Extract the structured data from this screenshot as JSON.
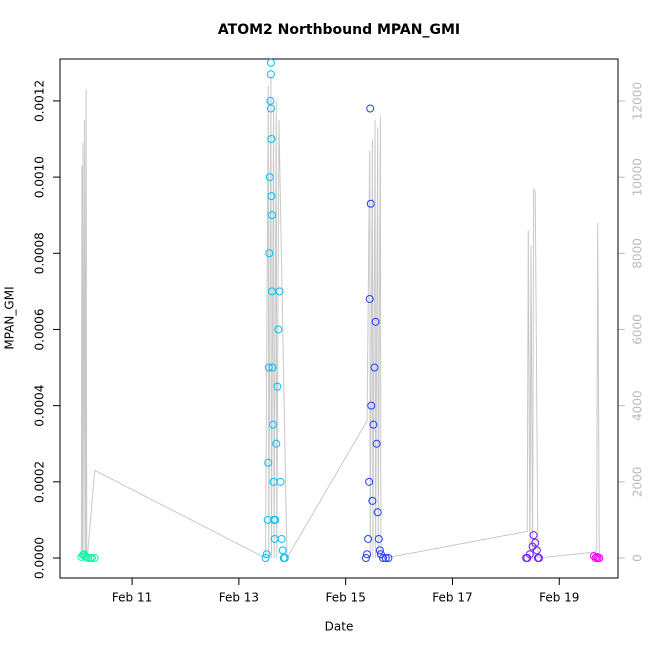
{
  "chart_data": {
    "type": "scatter",
    "title": "ATOM2 Northbound MPAN_GMI",
    "x_label": "Date",
    "y_label": "MPAN_GMI",
    "xlim": [
      9.65,
      20.1
    ],
    "xticks": [
      {
        "value": 11,
        "label": "Feb 11"
      },
      {
        "value": 13,
        "label": "Feb 13"
      },
      {
        "value": 15,
        "label": "Feb 15"
      },
      {
        "value": 17,
        "label": "Feb 17"
      },
      {
        "value": 19,
        "label": "Feb 19"
      }
    ],
    "ylim": [
      -5.25e-05,
      0.00131
    ],
    "yticks": [
      {
        "value": 0,
        "label": "0.0000"
      },
      {
        "value": 0.0002,
        "label": "0.0002"
      },
      {
        "value": 0.0004,
        "label": "0.0004"
      },
      {
        "value": 0.0006,
        "label": "0.0006"
      },
      {
        "value": 0.0008,
        "label": "0.0008"
      },
      {
        "value": 0.001,
        "label": "0.0010"
      },
      {
        "value": 0.0012,
        "label": "0.0012"
      }
    ],
    "y2lim": [
      -525,
      13103
    ],
    "y2ticks": [
      0,
      2000,
      4000,
      6000,
      8000,
      10000,
      12000
    ],
    "series": [
      {
        "type": "line",
        "axis": "y2",
        "color": "#c8c8c8",
        "x": [
          10.05,
          10.06,
          10.07,
          10.08,
          10.1,
          10.11,
          10.13,
          10.14,
          10.15,
          10.16,
          10.3,
          13.5,
          13.55,
          13.56,
          13.6,
          13.61,
          13.65,
          13.66,
          13.7,
          13.71,
          13.75,
          13.9,
          15.4,
          15.45,
          15.46,
          15.5,
          15.51,
          15.55,
          15.56,
          15.6,
          15.61,
          15.65,
          15.66,
          15.75,
          18.4,
          18.42,
          18.45,
          18.47,
          18.5,
          18.52,
          18.55,
          18.6,
          19.65,
          19.7,
          19.72,
          19.75
        ],
        "values": [
          0,
          10300,
          0,
          10900,
          0,
          11500,
          0,
          12300,
          0,
          0,
          2300,
          0,
          12400,
          0,
          12600,
          0,
          11800,
          0,
          12000,
          0,
          11500,
          0,
          3600,
          10700,
          0,
          11000,
          0,
          11500,
          0,
          11300,
          0,
          11600,
          0,
          0,
          700,
          8600,
          0,
          8200,
          0,
          9700,
          9600,
          0,
          150,
          200,
          8800,
          0
        ]
      },
      {
        "color": "#00ffaa",
        "x": [
          10.05,
          10.08,
          10.1,
          10.12,
          10.15,
          10.18,
          10.22,
          10.25,
          10.3
        ],
        "values": [
          3e-06,
          8e-06,
          1e-05,
          5e-06,
          2e-06,
          0,
          0,
          0,
          0
        ]
      },
      {
        "color": "#00bfff",
        "x": [
          13.5,
          13.52,
          13.54,
          13.55,
          13.56,
          13.57,
          13.58,
          13.59,
          13.6,
          13.6,
          13.61,
          13.62,
          13.62,
          13.63,
          13.64,
          13.65,
          13.66,
          13.67,
          13.68,
          13.7,
          13.72,
          13.74,
          13.76,
          13.78,
          13.8,
          13.82,
          13.84,
          13.86,
          13.6,
          13.61
        ],
        "values": [
          0,
          1e-05,
          0.0001,
          0.00025,
          0.0005,
          0.0008,
          0.001,
          0.0012,
          0.0013,
          0.00127,
          0.0011,
          0.0009,
          0.0007,
          0.0005,
          0.00035,
          0.0002,
          0.0001,
          5e-05,
          0.0001,
          0.0003,
          0.00045,
          0.0006,
          0.0007,
          0.0002,
          5e-05,
          2e-05,
          0,
          0,
          0.00118,
          0.00095
        ]
      },
      {
        "color": "#2040ff",
        "x": [
          15.38,
          15.4,
          15.42,
          15.44,
          15.45,
          15.46,
          15.47,
          15.48,
          15.5,
          15.52,
          15.54,
          15.56,
          15.58,
          15.6,
          15.62,
          15.64,
          15.66,
          15.7,
          15.75,
          15.8
        ],
        "values": [
          0,
          1e-05,
          5e-05,
          0.0002,
          0.00068,
          0.00118,
          0.00093,
          0.0004,
          0.00015,
          0.00035,
          0.0005,
          0.00062,
          0.0003,
          0.00012,
          5e-05,
          2e-05,
          1e-05,
          0,
          0,
          0
        ]
      },
      {
        "color": "#7020ff",
        "x": [
          18.38,
          18.4,
          18.45,
          18.5,
          18.52,
          18.55,
          18.58,
          18.6,
          18.62
        ],
        "values": [
          0,
          0,
          1e-05,
          3e-05,
          6e-05,
          4e-05,
          2e-05,
          0,
          0
        ]
      },
      {
        "color": "#ff00ff",
        "x": [
          19.65,
          19.68,
          19.7,
          19.72,
          19.75
        ],
        "values": [
          5e-06,
          0,
          3e-06,
          0,
          0
        ]
      }
    ]
  }
}
